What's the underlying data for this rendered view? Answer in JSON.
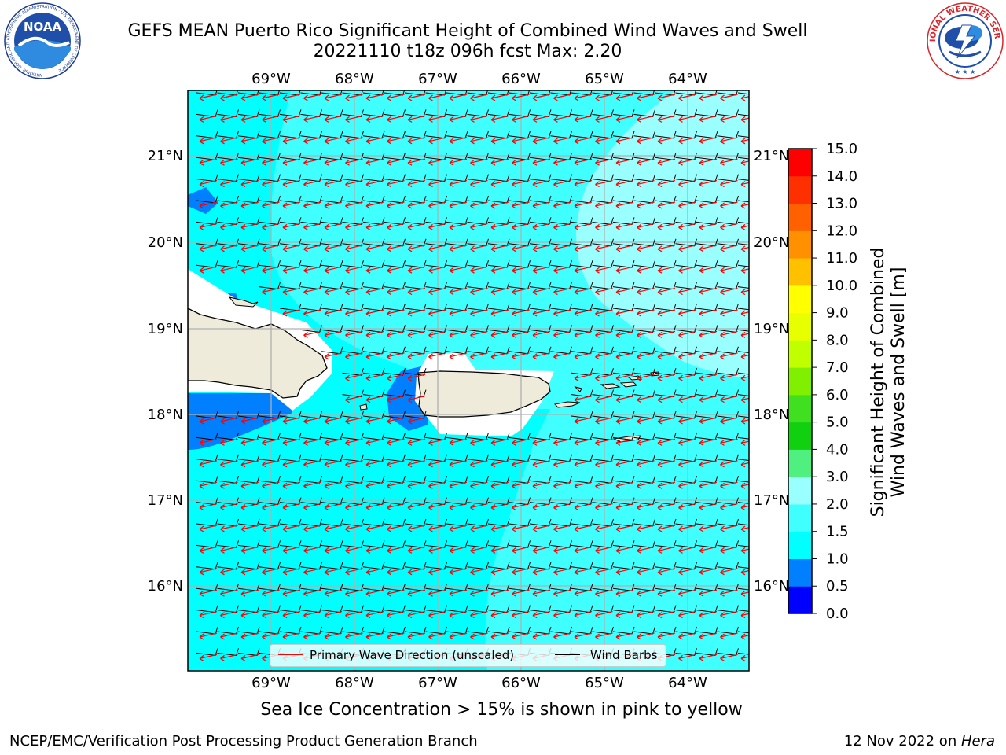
{
  "header": {
    "title_line1": "GEFS MEAN Puerto Rico Significant Height of Combined Wind Waves and Swell",
    "title_line2": "20221110 t18z 096h fcst   Max: 2.20"
  },
  "logos": {
    "noaa": {
      "icon": "noaa-logo",
      "text": "NOAA",
      "ring_text": "NATIONAL OCEANIC AND ATMOSPHERIC ADMINISTRATION · U.S. DEPARTMENT OF COMMERCE"
    },
    "nws": {
      "icon": "nws-logo",
      "ring_text": "NATIONAL WEATHER SERVICE"
    }
  },
  "axes": {
    "lon_labels": [
      "69°W",
      "68°W",
      "67°W",
      "66°W",
      "65°W",
      "64°W"
    ],
    "lat_labels": [
      "21°N",
      "20°N",
      "19°N",
      "18°N",
      "17°N",
      "16°N"
    ]
  },
  "legend": {
    "wave_label": "Primary Wave Direction (unscaled)",
    "barb_label": "Wind Barbs",
    "wave_color": "#ff0000",
    "barb_color": "#000000"
  },
  "colorbar": {
    "label_line1": "Significant Height of Combined",
    "label_line2": "Wind Waves and Swell [m]",
    "ticks": [
      "0.0",
      "0.5",
      "1.0",
      "1.5",
      "2.0",
      "3.0",
      "4.0",
      "5.0",
      "6.0",
      "7.0",
      "8.0",
      "9.0",
      "10.0",
      "11.0",
      "12.0",
      "13.0",
      "14.0",
      "15.0"
    ],
    "colors": [
      "#0000ff",
      "#0080ff",
      "#00ffff",
      "#40ffff",
      "#99ffff",
      "#50f080",
      "#10d010",
      "#40e020",
      "#80f000",
      "#c0ff00",
      "#e8ff00",
      "#ffff00",
      "#ffc000",
      "#ff9000",
      "#ff6000",
      "#ff3000",
      "#ff0000"
    ]
  },
  "map_colors": {
    "sea_1.0_1.5": "#00ffff",
    "sea_1.5_2.0": "#40ffff",
    "sea_2.0_3.0": "#99ffff",
    "sea_0.5_1.0": "#0080ff",
    "land": "#efebdb",
    "no_data": "#ffffff"
  },
  "notes": {
    "sea_ice": "Sea Ice Concentration > 15% is shown in pink to yellow"
  },
  "footer": {
    "left": "NCEP/EMC/Verification Post Processing Product Generation Branch",
    "right_prefix": "12 Nov 2022 on ",
    "right_host": "Hera"
  }
}
